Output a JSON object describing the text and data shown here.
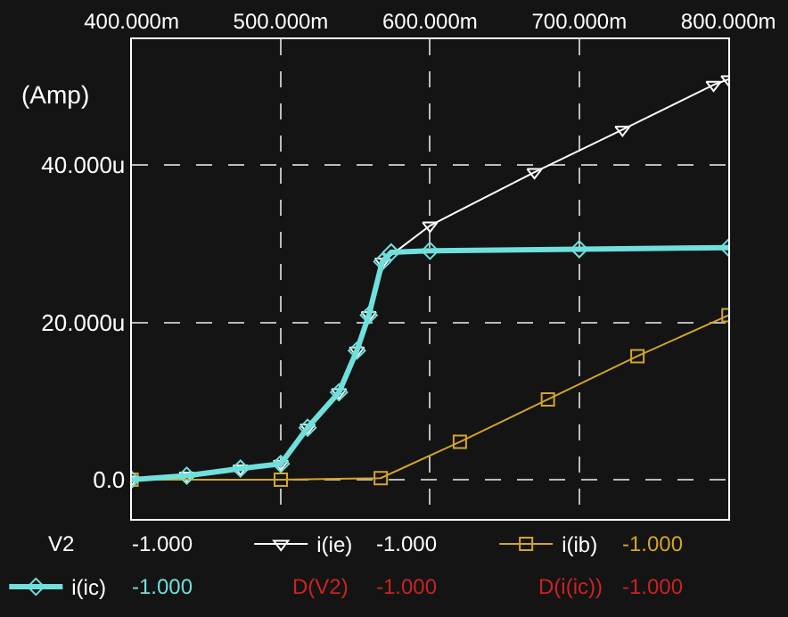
{
  "chart_data": {
    "type": "line",
    "ylabel": "(Amp)",
    "xlim": [
      400,
      800
    ],
    "xticks": [
      {
        "value": 400,
        "label": "400.000m"
      },
      {
        "value": 500,
        "label": "500.000m"
      },
      {
        "value": 600,
        "label": "600.000m"
      },
      {
        "value": 700,
        "label": "700.000m"
      },
      {
        "value": 800,
        "label": "800.000m"
      }
    ],
    "ylim": [
      -5,
      56
    ],
    "yticks": [
      {
        "value": 0,
        "label": "0.0"
      },
      {
        "value": 20,
        "label": "20.000u"
      },
      {
        "value": 40,
        "label": "40.000u"
      }
    ],
    "grid": true,
    "line_style": "solid",
    "legend": "bottom",
    "series": [
      {
        "name": "i(ie)",
        "color": "#ffffff",
        "marker": "triangle",
        "x": [
          400,
          437,
          473,
          500,
          518,
          539,
          551,
          559,
          568,
          600,
          670,
          729,
          790,
          800
        ],
        "values": [
          0,
          0.5,
          1.4,
          2.0,
          6.6,
          11.1,
          16.4,
          20.9,
          27.7,
          32.3,
          39.1,
          44.5,
          50.2,
          50.9
        ]
      },
      {
        "name": "i(ib)",
        "color": "#d4a52a",
        "marker": "square",
        "x": [
          400,
          500,
          567,
          620,
          679,
          739,
          800
        ],
        "values": [
          0,
          0,
          0.2,
          4.8,
          10.2,
          15.7,
          20.9
        ]
      },
      {
        "name": "i(ic)",
        "color": "#6fe0dc",
        "marker": "diamond",
        "x": [
          400,
          437,
          473,
          500,
          518,
          539,
          551,
          559,
          568,
          574,
          600,
          700,
          800
        ],
        "values": [
          0,
          0.5,
          1.4,
          2.0,
          6.6,
          11.1,
          16.4,
          20.9,
          27.7,
          28.9,
          29.1,
          29.3,
          29.5
        ]
      }
    ],
    "annotations": [
      "V2",
      "-1.000",
      "-1.000",
      "-1.000",
      "-1.000",
      "D(V2)",
      "-1.000",
      "D(i(ic))",
      "-1.000"
    ]
  }
}
